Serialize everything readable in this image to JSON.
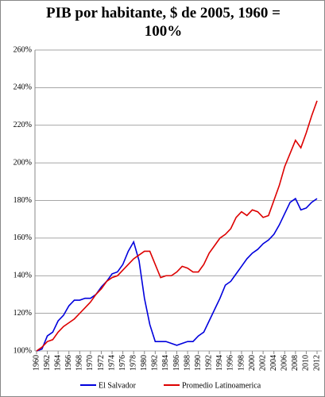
{
  "chart_data": {
    "type": "line",
    "title": "PIB por habitante, $ de 2005, 1960 = 100%",
    "x": [
      1960,
      1961,
      1962,
      1963,
      1964,
      1965,
      1966,
      1967,
      1968,
      1969,
      1970,
      1971,
      1972,
      1973,
      1974,
      1975,
      1976,
      1977,
      1978,
      1979,
      1980,
      1981,
      1982,
      1983,
      1984,
      1985,
      1986,
      1987,
      1988,
      1989,
      1990,
      1991,
      1992,
      1993,
      1994,
      1995,
      1996,
      1997,
      1998,
      1999,
      2000,
      2001,
      2002,
      2003,
      2004,
      2005,
      2006,
      2007,
      2008,
      2009,
      2010,
      2011,
      2012
    ],
    "series": [
      {
        "name": "El Salvador",
        "color": "#0000dd",
        "values": [
          100,
          101,
          108,
          110,
          116,
          119,
          124,
          127,
          127,
          128,
          128,
          130,
          134,
          137,
          141,
          142,
          146,
          153,
          158,
          148,
          128,
          114,
          105,
          105,
          105,
          104,
          103,
          104,
          105,
          105,
          108,
          110,
          116,
          122,
          128,
          135,
          137,
          141,
          145,
          149,
          152,
          154,
          157,
          159,
          162,
          167,
          173,
          179,
          181,
          175,
          176,
          179,
          181
        ]
      },
      {
        "name": "Promedio Latinoamerica",
        "color": "#dd0000",
        "values": [
          100,
          102,
          105,
          106,
          110,
          113,
          115,
          117,
          120,
          123,
          126,
          130,
          133,
          137,
          139,
          140,
          143,
          146,
          149,
          151,
          153,
          153,
          146,
          139,
          140,
          140,
          142,
          145,
          144,
          142,
          142,
          146,
          152,
          156,
          160,
          162,
          165,
          171,
          174,
          172,
          175,
          174,
          171,
          172,
          180,
          188,
          198,
          205,
          212,
          208,
          216,
          225,
          233
        ]
      }
    ],
    "xlim": [
      1960,
      2012
    ],
    "xticks": [
      1960,
      1962,
      1964,
      1966,
      1968,
      1970,
      1972,
      1974,
      1976,
      1978,
      1980,
      1982,
      1984,
      1986,
      1988,
      1990,
      1992,
      1994,
      1996,
      1998,
      2000,
      2002,
      2004,
      2006,
      2008,
      2010,
      2012
    ],
    "ylim": [
      100,
      260
    ],
    "yticks": [
      {
        "value": 100,
        "label": "100%"
      },
      {
        "value": 120,
        "label": "120%"
      },
      {
        "value": 140,
        "label": "140%"
      },
      {
        "value": 160,
        "label": "160%"
      },
      {
        "value": 180,
        "label": "180%"
      },
      {
        "value": 200,
        "label": "200%"
      },
      {
        "value": 220,
        "label": "220%"
      },
      {
        "value": 240,
        "label": "240%"
      },
      {
        "value": 260,
        "label": "260%"
      }
    ],
    "grid": true,
    "legend": "bottom"
  }
}
